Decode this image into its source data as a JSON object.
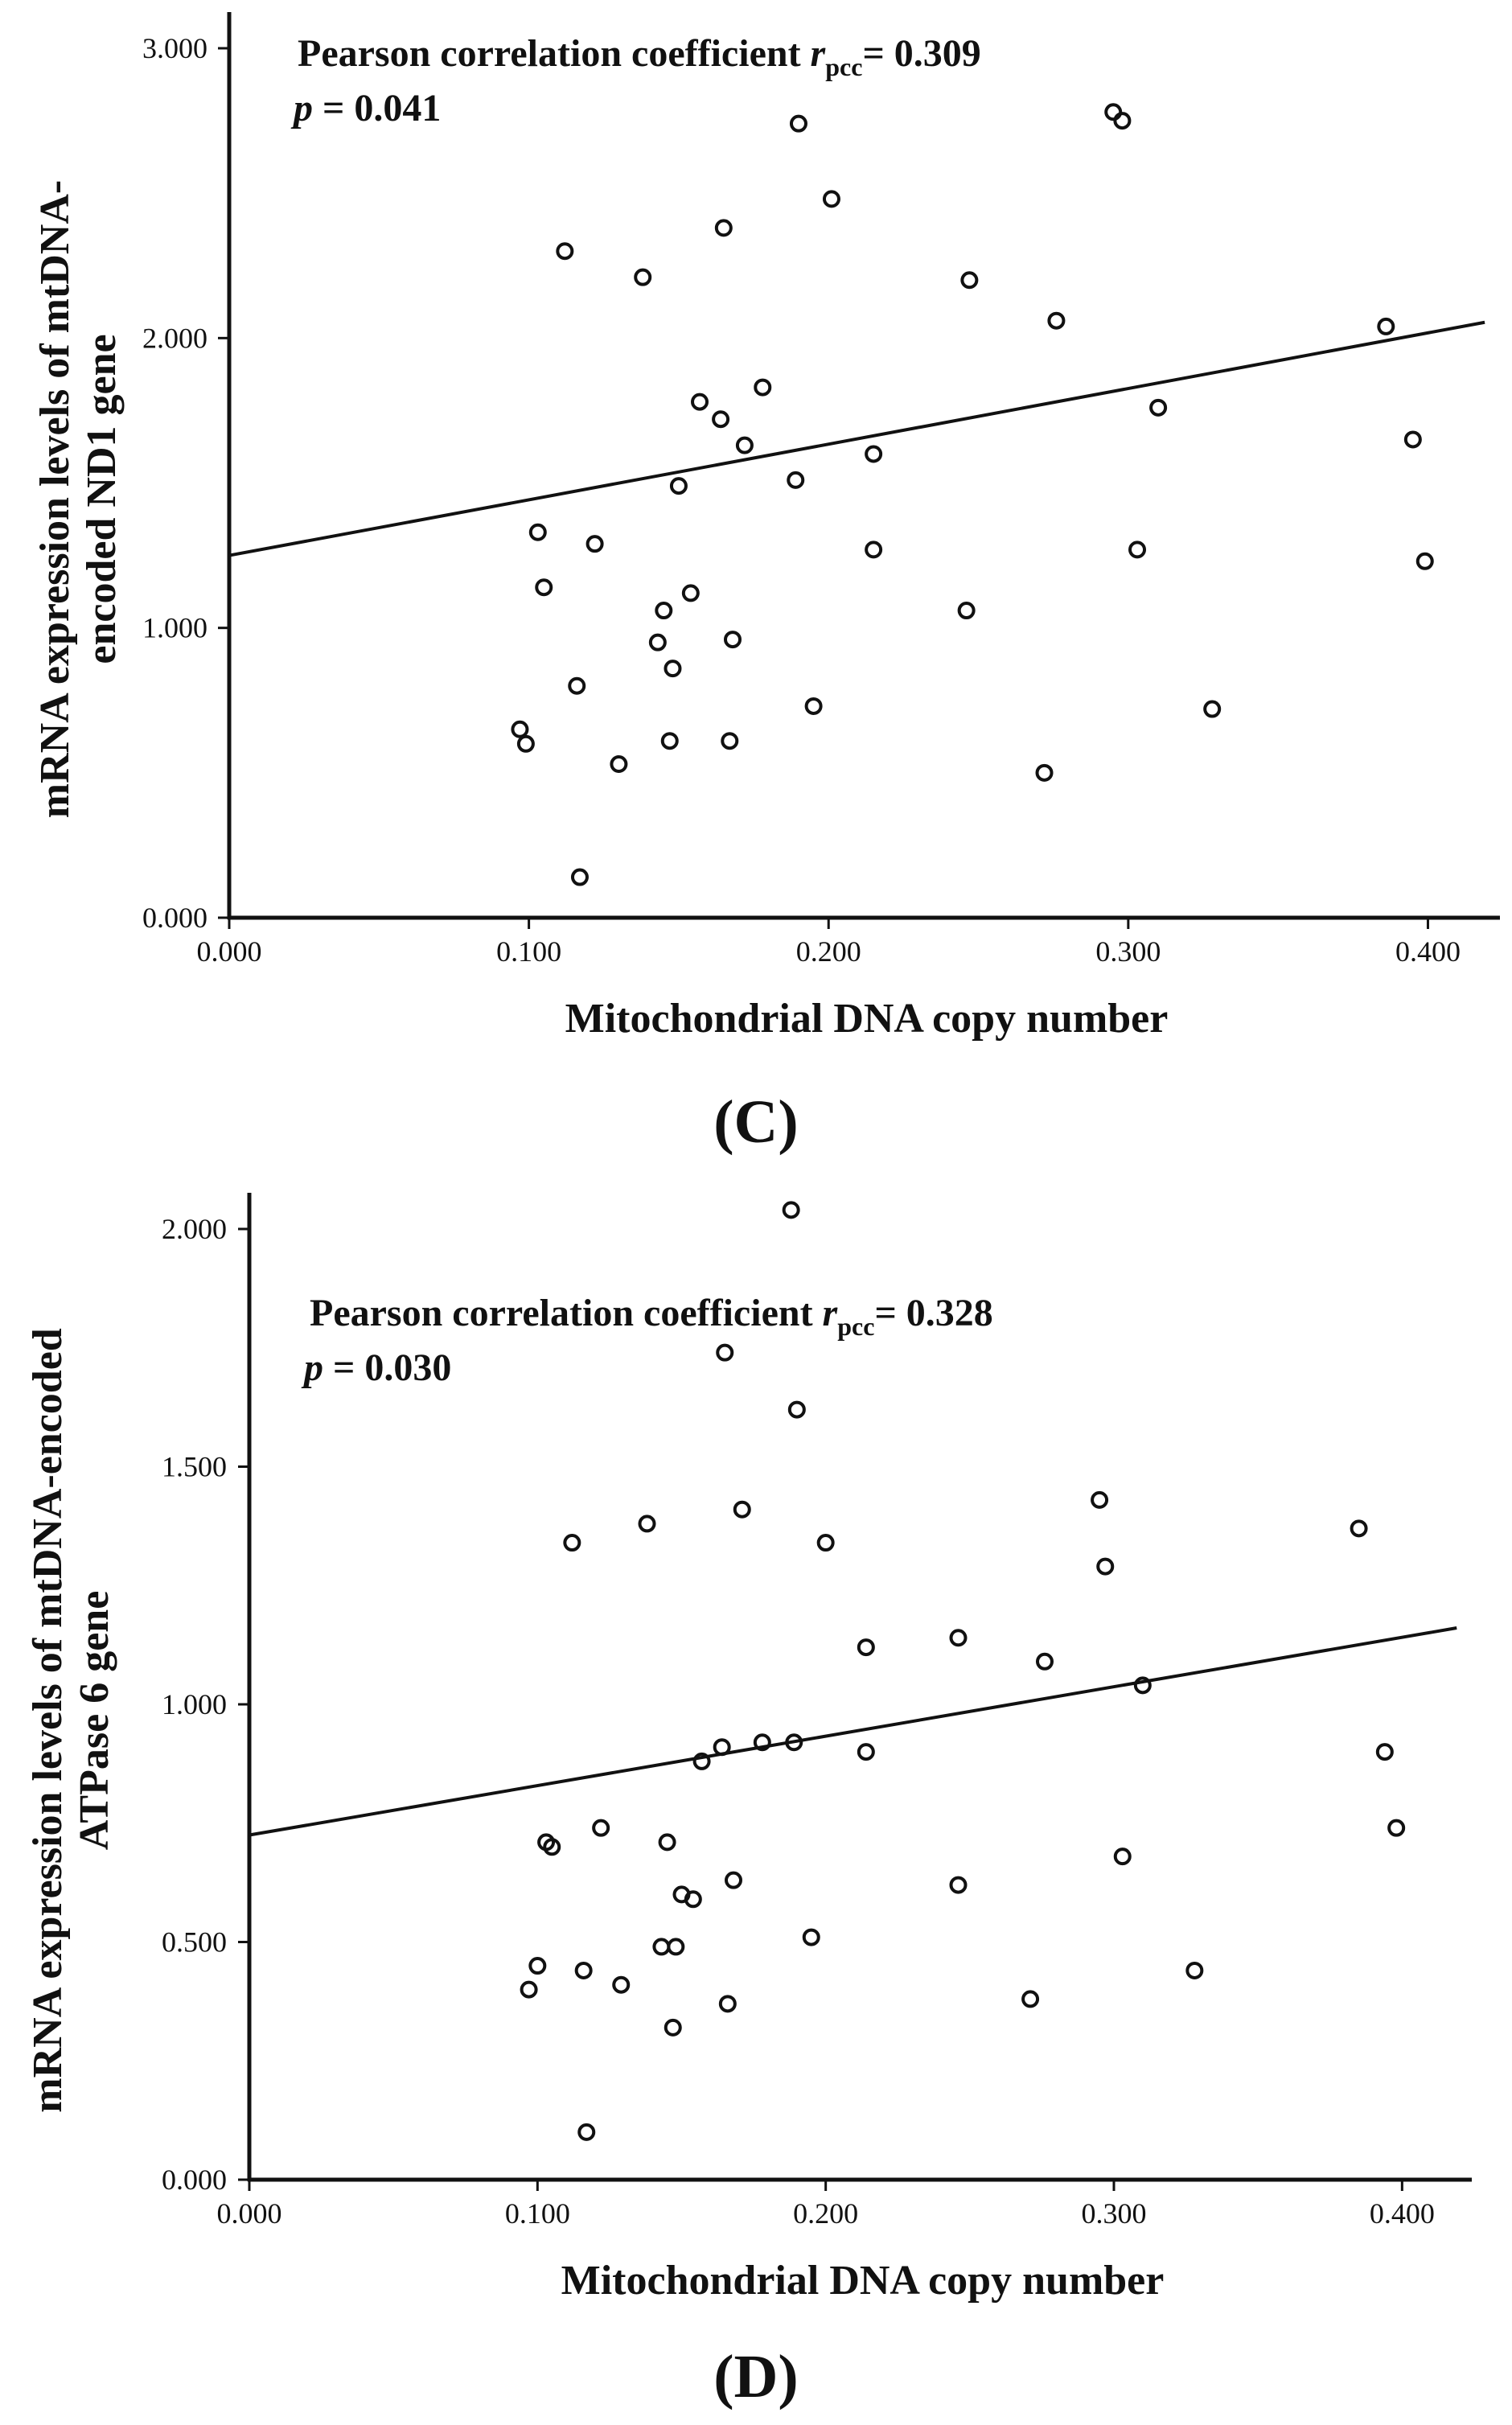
{
  "chart_data": [
    {
      "type": "scatter",
      "panel_label": "C",
      "xlabel": "Mitochondrial DNA copy number",
      "ylabel_lines": [
        "mRNA expression levels of mtDNA-",
        "encoded ND1 gene"
      ],
      "annotation": {
        "line1_prefix": "Pearson correlation coefficient ",
        "r_symbol": "r",
        "r_subscript": "pcc",
        "r_value": "= 0.309",
        "p_symbol": "p",
        "p_value": " = 0.041"
      },
      "xlim": [
        0,
        0.42
      ],
      "ylim": [
        0,
        3.0
      ],
      "xticks": [
        0,
        0.1,
        0.2,
        0.3,
        0.4
      ],
      "xtick_labels": [
        "0.000",
        "0.100",
        "0.200",
        "0.300",
        "0.400"
      ],
      "yticks": [
        0,
        1,
        2,
        3
      ],
      "ytick_labels": [
        "0.000",
        "1.000",
        "2.000",
        "3.000"
      ],
      "fit_line": {
        "intercept": 1.25,
        "slope": 1.92
      },
      "points": [
        [
          0.097,
          0.65
        ],
        [
          0.099,
          0.6
        ],
        [
          0.103,
          1.33
        ],
        [
          0.105,
          1.14
        ],
        [
          0.112,
          2.3
        ],
        [
          0.116,
          0.8
        ],
        [
          0.117,
          0.14
        ],
        [
          0.122,
          1.29
        ],
        [
          0.13,
          0.53
        ],
        [
          0.138,
          2.21
        ],
        [
          0.143,
          0.95
        ],
        [
          0.145,
          1.06
        ],
        [
          0.147,
          0.61
        ],
        [
          0.148,
          0.86
        ],
        [
          0.15,
          1.49
        ],
        [
          0.154,
          1.12
        ],
        [
          0.157,
          1.78
        ],
        [
          0.164,
          1.72
        ],
        [
          0.165,
          2.38
        ],
        [
          0.167,
          0.61
        ],
        [
          0.168,
          0.96
        ],
        [
          0.172,
          1.63
        ],
        [
          0.178,
          1.83
        ],
        [
          0.189,
          1.51
        ],
        [
          0.19,
          2.74
        ],
        [
          0.195,
          0.73
        ],
        [
          0.201,
          2.48
        ],
        [
          0.215,
          1.6
        ],
        [
          0.215,
          1.27
        ],
        [
          0.246,
          1.06
        ],
        [
          0.247,
          2.2
        ],
        [
          0.272,
          0.5
        ],
        [
          0.276,
          2.06
        ],
        [
          0.295,
          2.78
        ],
        [
          0.298,
          2.75
        ],
        [
          0.303,
          1.27
        ],
        [
          0.31,
          1.76
        ],
        [
          0.328,
          0.72
        ],
        [
          0.386,
          2.04
        ],
        [
          0.395,
          1.65
        ],
        [
          0.399,
          1.23
        ]
      ]
    },
    {
      "type": "scatter",
      "panel_label": "D",
      "xlabel": "Mitochondrial DNA copy number",
      "ylabel_lines": [
        "mRNA expression levels of mtDNA-encoded",
        "ATPase 6 gene"
      ],
      "annotation": {
        "line1_prefix": "Pearson correlation coefficient ",
        "r_symbol": "r",
        "r_subscript": "pcc",
        "r_value": "= 0.328",
        "p_symbol": "p",
        "p_value": " = 0.030"
      },
      "xlim": [
        0,
        0.42
      ],
      "ylim": [
        0,
        2.0
      ],
      "xticks": [
        0,
        0.1,
        0.2,
        0.3,
        0.4
      ],
      "xtick_labels": [
        "0.000",
        "0.100",
        "0.200",
        "0.300",
        "0.400"
      ],
      "yticks": [
        0,
        0.5,
        1.0,
        1.5,
        2.0
      ],
      "ytick_labels": [
        "0.000",
        "0.500",
        "1.000",
        "1.500",
        "2.000"
      ],
      "fit_line": {
        "intercept": 0.725,
        "slope": 1.04
      },
      "points": [
        [
          0.097,
          0.4
        ],
        [
          0.1,
          0.45
        ],
        [
          0.103,
          0.71
        ],
        [
          0.105,
          0.7
        ],
        [
          0.112,
          1.34
        ],
        [
          0.116,
          0.44
        ],
        [
          0.117,
          0.1
        ],
        [
          0.122,
          0.74
        ],
        [
          0.129,
          0.41
        ],
        [
          0.138,
          1.38
        ],
        [
          0.143,
          0.49
        ],
        [
          0.145,
          0.71
        ],
        [
          0.147,
          0.32
        ],
        [
          0.148,
          0.49
        ],
        [
          0.15,
          0.6
        ],
        [
          0.154,
          0.59
        ],
        [
          0.157,
          0.88
        ],
        [
          0.164,
          0.91
        ],
        [
          0.165,
          1.74
        ],
        [
          0.166,
          0.37
        ],
        [
          0.168,
          0.63
        ],
        [
          0.171,
          1.41
        ],
        [
          0.178,
          0.92
        ],
        [
          0.188,
          2.04
        ],
        [
          0.189,
          0.92
        ],
        [
          0.19,
          1.62
        ],
        [
          0.195,
          0.51
        ],
        [
          0.2,
          1.34
        ],
        [
          0.214,
          1.12
        ],
        [
          0.214,
          0.9
        ],
        [
          0.246,
          1.14
        ],
        [
          0.246,
          0.62
        ],
        [
          0.271,
          0.38
        ],
        [
          0.276,
          1.09
        ],
        [
          0.295,
          1.43
        ],
        [
          0.297,
          1.29
        ],
        [
          0.303,
          0.68
        ],
        [
          0.31,
          1.04
        ],
        [
          0.328,
          0.44
        ],
        [
          0.385,
          1.37
        ],
        [
          0.394,
          0.9
        ],
        [
          0.398,
          0.74
        ]
      ]
    }
  ]
}
